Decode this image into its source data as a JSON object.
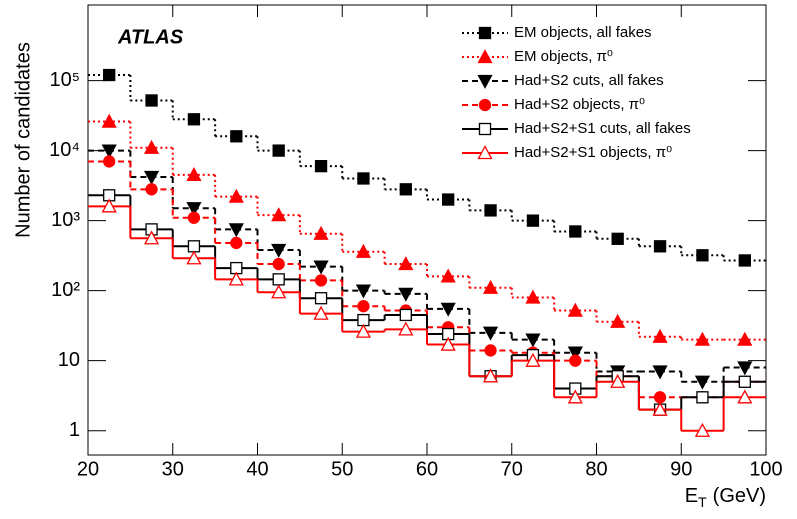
{
  "chart_data": {
    "type": "histogram",
    "annotation": "ATLAS",
    "y_label": "Number of candidates",
    "x_label": {
      "text": "E",
      "subscript": "T",
      "suffix": "(GeV)"
    },
    "bins": [
      20,
      25,
      30,
      35,
      40,
      45,
      50,
      55,
      60,
      65,
      70,
      75,
      80,
      85,
      90,
      95,
      100
    ],
    "xlim": [
      20,
      100
    ],
    "xticks": [
      20,
      30,
      40,
      50,
      60,
      70,
      80,
      90,
      100
    ],
    "ylim": [
      0.45,
      1200000
    ],
    "log_y": true,
    "yticks": [
      1,
      10,
      {
        "value": 100,
        "label": "10²"
      },
      {
        "value": 1000,
        "label": "10³"
      },
      {
        "value": 10000,
        "label": "10⁴"
      },
      {
        "value": 100000,
        "label": "10⁵"
      }
    ],
    "legend": "upper right",
    "series": [
      {
        "name": "EM objects, all fakes",
        "color": "#000000",
        "line_style": "dotted",
        "marker": "square",
        "values": [
          120000,
          52000,
          28000,
          16000,
          10000,
          6000,
          4000,
          2800,
          2000,
          1400,
          1000,
          700,
          550,
          430,
          320,
          270
        ]
      },
      {
        "name": "EM objects, π⁰",
        "color": "#ff0000",
        "line_style": "dotted",
        "marker": "triangle-up",
        "values": [
          26000,
          11000,
          4500,
          2200,
          1200,
          650,
          360,
          240,
          160,
          110,
          80,
          52,
          36,
          22,
          20,
          20
        ]
      },
      {
        "name": "Had+S2 cuts, all fakes",
        "color": "#000000",
        "line_style": "dashed",
        "marker": "triangle-down",
        "values": [
          10000,
          4200,
          1500,
          750,
          380,
          220,
          100,
          90,
          55,
          25,
          20,
          13,
          7,
          7,
          5,
          8
        ]
      },
      {
        "name": "Had+S2 objects, π⁰",
        "color": "#ff0000",
        "line_style": "dashed",
        "marker": "circle",
        "values": [
          7000,
          2800,
          1100,
          480,
          240,
          140,
          60,
          52,
          30,
          14,
          13,
          10,
          6,
          3,
          3,
          5
        ]
      },
      {
        "name": "Had+S2+S1 cuts, all fakes",
        "color": "#000000",
        "line_style": "solid",
        "marker": "open-square",
        "values": [
          2300,
          750,
          430,
          210,
          145,
          78,
          38,
          45,
          24,
          6,
          12,
          4,
          6,
          2,
          3,
          5
        ]
      },
      {
        "name": "Had+S2+S1 objects, π⁰",
        "color": "#ff0000",
        "line_style": "solid",
        "marker": "open-triangle-up",
        "values": [
          1600,
          560,
          290,
          145,
          95,
          47,
          26,
          28,
          17,
          6,
          10,
          3,
          5,
          2,
          1,
          3
        ]
      }
    ]
  }
}
